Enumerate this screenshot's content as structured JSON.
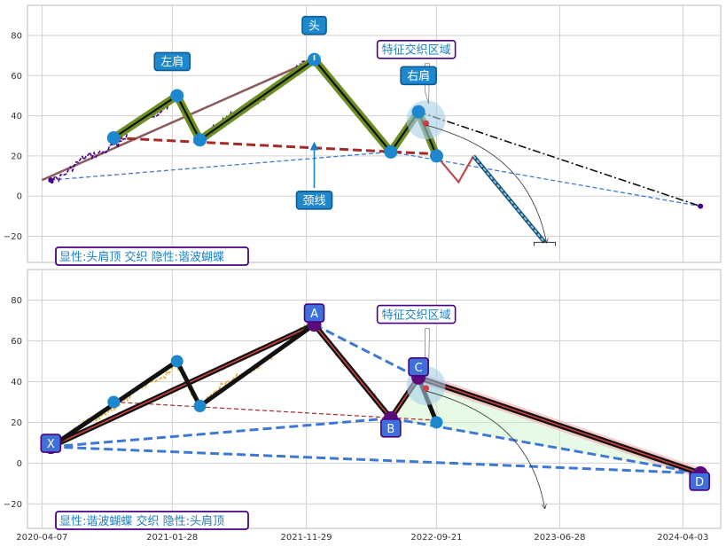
{
  "colors": {
    "panel_border": "#bbbbbb",
    "grid": "#d0d0d0",
    "price_top": "#4b0082",
    "price_bottom": "#e8b040",
    "pattern_fill": "#6b8e23",
    "pattern_line": "#111111",
    "neckline": "#a52a2a",
    "left_slope": "#8b5a5a",
    "label_fill": "#1e88cf",
    "xabcd_fill": "#3f6fd8",
    "xabcd_border": "#4b0082",
    "dash_blue": "#3f78d4",
    "status_text": "#1e7fc0",
    "status_border": "#4b0082"
  },
  "chart_data": [
    {
      "type": "line",
      "panel": "top",
      "ylim": [
        -33,
        95
      ],
      "yticks": [
        -20,
        0,
        20,
        40,
        60,
        80
      ],
      "xlim": [
        "2020-03-05",
        "2024-06-28"
      ],
      "xticks": [
        "2020-04-07",
        "2021-01-28",
        "2021-11-29",
        "2022-09-21",
        "2023-06-28",
        "2024-04-03"
      ],
      "grid": true,
      "pattern_points": [
        {
          "x": "2020-09-17",
          "y": 29
        },
        {
          "x": "2021-02-08",
          "y": 50
        },
        {
          "x": "2021-04-01",
          "y": 28
        },
        {
          "x": "2021-12-17",
          "y": 68
        },
        {
          "x": "2022-06-09",
          "y": 22
        },
        {
          "x": "2022-08-11",
          "y": 42
        },
        {
          "x": "2022-09-21",
          "y": 20
        }
      ],
      "projection_points": [
        {
          "x": "2022-09-21",
          "y": 20
        },
        {
          "x": "2022-11-10",
          "y": 7
        },
        {
          "x": "2022-12-14",
          "y": 20
        },
        {
          "x": "2023-05-25",
          "y": -23
        }
      ],
      "neckline": [
        {
          "x": "2020-09-17",
          "y": 29
        },
        {
          "x": "2022-09-21",
          "y": 21
        }
      ],
      "left_slope": [
        {
          "x": "2020-04-07",
          "y": 8
        },
        {
          "x": "2021-12-17",
          "y": 68
        }
      ],
      "forecast": [
        {
          "x": "2022-08-11",
          "y": 42
        },
        {
          "x": "2024-05-13",
          "y": -5
        }
      ],
      "base_line": [
        {
          "x": "2020-04-27",
          "y": 8
        },
        {
          "x": "2022-06-09",
          "y": 22
        },
        {
          "x": "2024-05-13",
          "y": -5
        }
      ],
      "endpoints": [
        {
          "x": "2020-04-27",
          "y": 8
        },
        {
          "x": "2024-05-13",
          "y": -5
        }
      ],
      "labels": [
        {
          "text": "左肩",
          "x": "2021-01-28",
          "y": 67
        },
        {
          "text": "头",
          "x": "2021-12-17",
          "y": 85
        },
        {
          "text": "右肩",
          "x": "2022-08-11",
          "y": 60
        },
        {
          "text": "颈线",
          "x": "2021-12-17",
          "y": -2
        },
        {
          "text": "特征交织区域",
          "x": "2022-08-06",
          "y": 73
        }
      ],
      "status_text": "显性:头肩顶 交织 隐性:谐波蝴蝶"
    },
    {
      "type": "line",
      "panel": "bottom",
      "ylim": [
        -32,
        95
      ],
      "yticks": [
        -20,
        0,
        20,
        40,
        60,
        80
      ],
      "xlim": [
        "2020-03-05",
        "2024-06-28"
      ],
      "xticks": [
        "2020-04-07",
        "2021-01-28",
        "2021-11-29",
        "2022-09-21",
        "2023-06-28",
        "2024-04-03"
      ],
      "grid": true,
      "xabcd": [
        {
          "name": "X",
          "x": "2020-04-27",
          "y": 8
        },
        {
          "name": "A",
          "x": "2021-12-17",
          "y": 68
        },
        {
          "name": "B",
          "x": "2022-06-09",
          "y": 22
        },
        {
          "name": "C",
          "x": "2022-08-11",
          "y": 42
        },
        {
          "name": "D",
          "x": "2024-05-13",
          "y": -5
        }
      ],
      "hs_points": [
        {
          "x": "2020-04-27",
          "y": 8
        },
        {
          "x": "2021-02-08",
          "y": 50
        },
        {
          "x": "2021-04-01",
          "y": 28
        },
        {
          "x": "2021-12-17",
          "y": 68
        }
      ],
      "hs_tail": {
        "x": "2022-09-21",
        "y": 20
      },
      "neckline": [
        {
          "x": "2020-09-17",
          "y": 30
        },
        {
          "x": "2022-09-21",
          "y": 21
        }
      ],
      "labels": [
        {
          "text": "特征交织区域",
          "x": "2022-08-06",
          "y": 73
        }
      ],
      "status_text": "显性:谐波蝴蝶 交织 隐性:头肩顶"
    }
  ]
}
